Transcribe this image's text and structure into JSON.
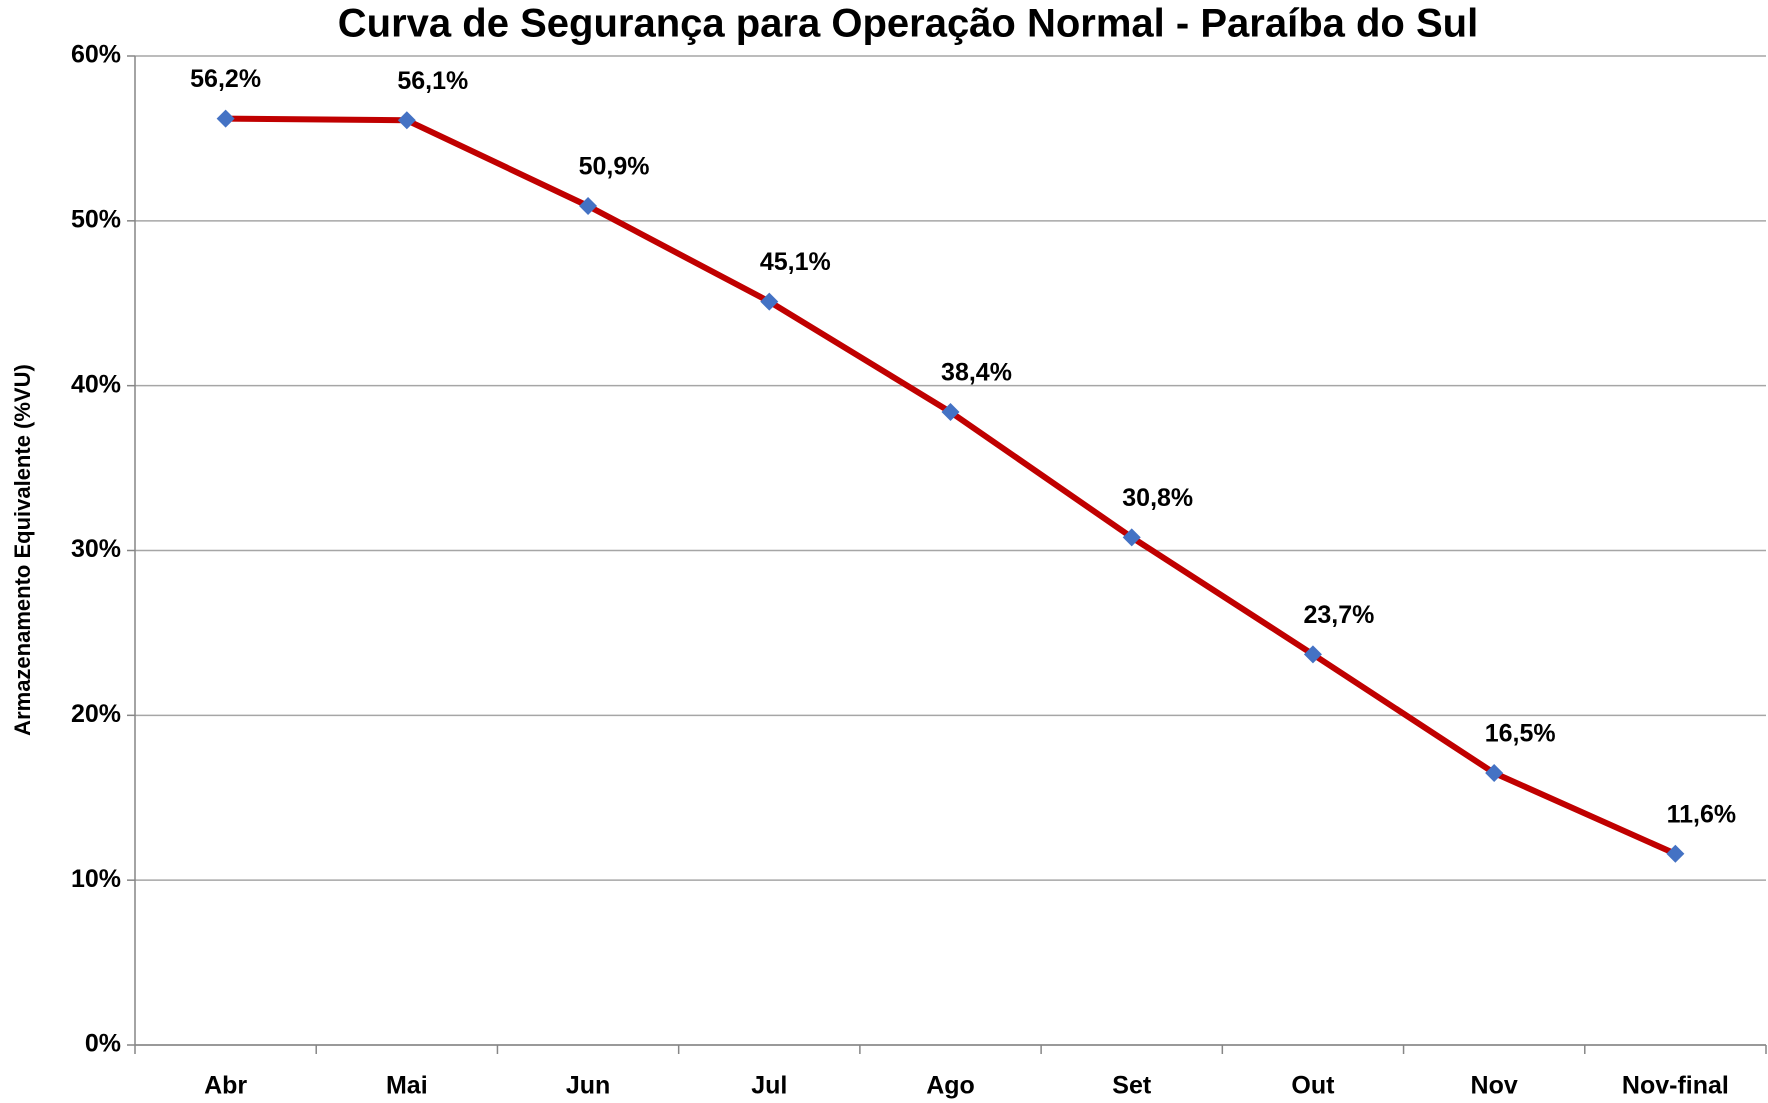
{
  "chart_data": {
    "type": "line",
    "title": "Curva de Segurança para Operação Normal - Paraíba do Sul",
    "y_label": "Armazenamento Equivalente (%VU)",
    "categories": [
      "Abr",
      "Mai",
      "Jun",
      "Jul",
      "Ago",
      "Set",
      "Out",
      "Nov",
      "Nov-final"
    ],
    "values": [
      56.2,
      56.1,
      50.9,
      45.1,
      38.4,
      30.8,
      23.7,
      16.5,
      11.6
    ],
    "value_labels": [
      "56,2%",
      "56,1%",
      "50,9%",
      "45,1%",
      "38,4%",
      "30,8%",
      "23,7%",
      "16,5%",
      "11,6%"
    ],
    "color": "#c00000",
    "marker_color": "#4472c4",
    "ylim": [
      0,
      60
    ],
    "yticks": [
      {
        "value": 0,
        "label": "0%"
      },
      {
        "value": 10,
        "label": "10%"
      },
      {
        "value": 20,
        "label": "20%"
      },
      {
        "value": 30,
        "label": "30%"
      },
      {
        "value": 40,
        "label": "40%"
      },
      {
        "value": 50,
        "label": "50%"
      },
      {
        "value": 60,
        "label": "60%"
      }
    ],
    "grid": true
  }
}
